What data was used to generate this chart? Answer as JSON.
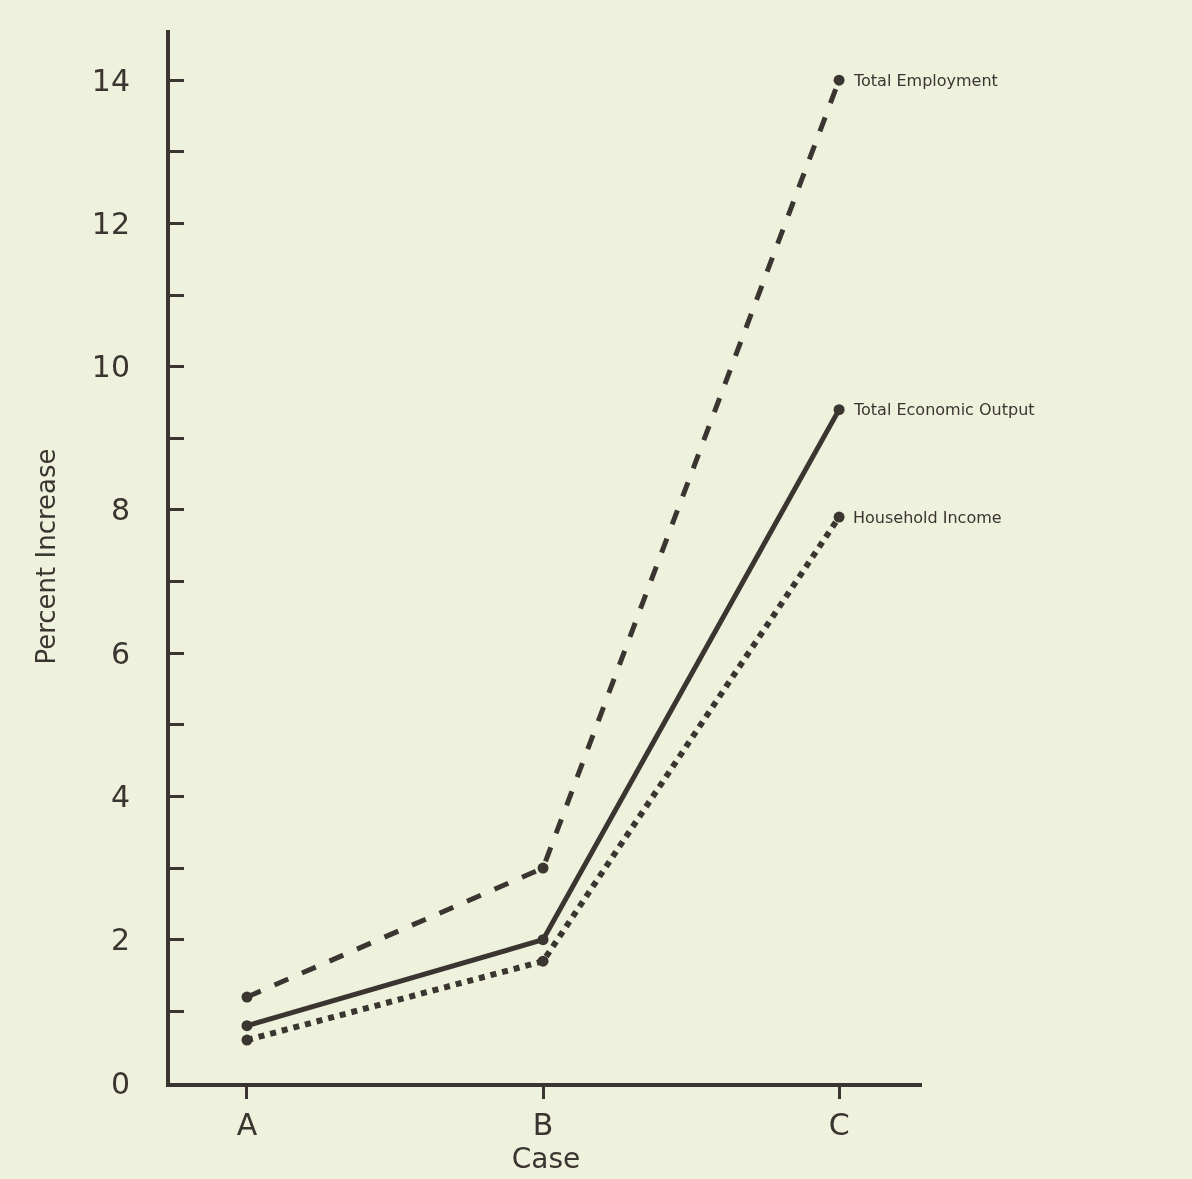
{
  "chart_data": {
    "type": "line",
    "xlabel": "Case",
    "ylabel": "Percent Increase",
    "categories": [
      "A",
      "B",
      "C"
    ],
    "series": [
      {
        "name": "Total Employment",
        "color": "#3a3530",
        "line_style": "dashed",
        "values": [
          1.2,
          3.0,
          14.0
        ]
      },
      {
        "name": "Total Economic Output",
        "color": "#3a3530",
        "line_style": "solid",
        "values": [
          0.8,
          2.0,
          9.4
        ]
      },
      {
        "name": "Household Income",
        "color": "#3a3530",
        "line_style": "dotted",
        "values": [
          0.6,
          1.7,
          7.9
        ]
      }
    ],
    "ylim": [
      0,
      14.7
    ],
    "yticks": [
      0,
      {
        "value": 1,
        "label": null
      },
      2,
      {
        "value": 3,
        "label": null
      },
      4,
      {
        "value": 5,
        "label": null
      },
      6,
      {
        "value": 7,
        "label": null
      },
      8,
      {
        "value": 9,
        "label": null
      },
      10,
      {
        "value": 11,
        "label": null
      },
      12,
      {
        "value": 13,
        "label": null
      },
      14
    ],
    "marker": "circle",
    "grid": false,
    "legend": false
  }
}
